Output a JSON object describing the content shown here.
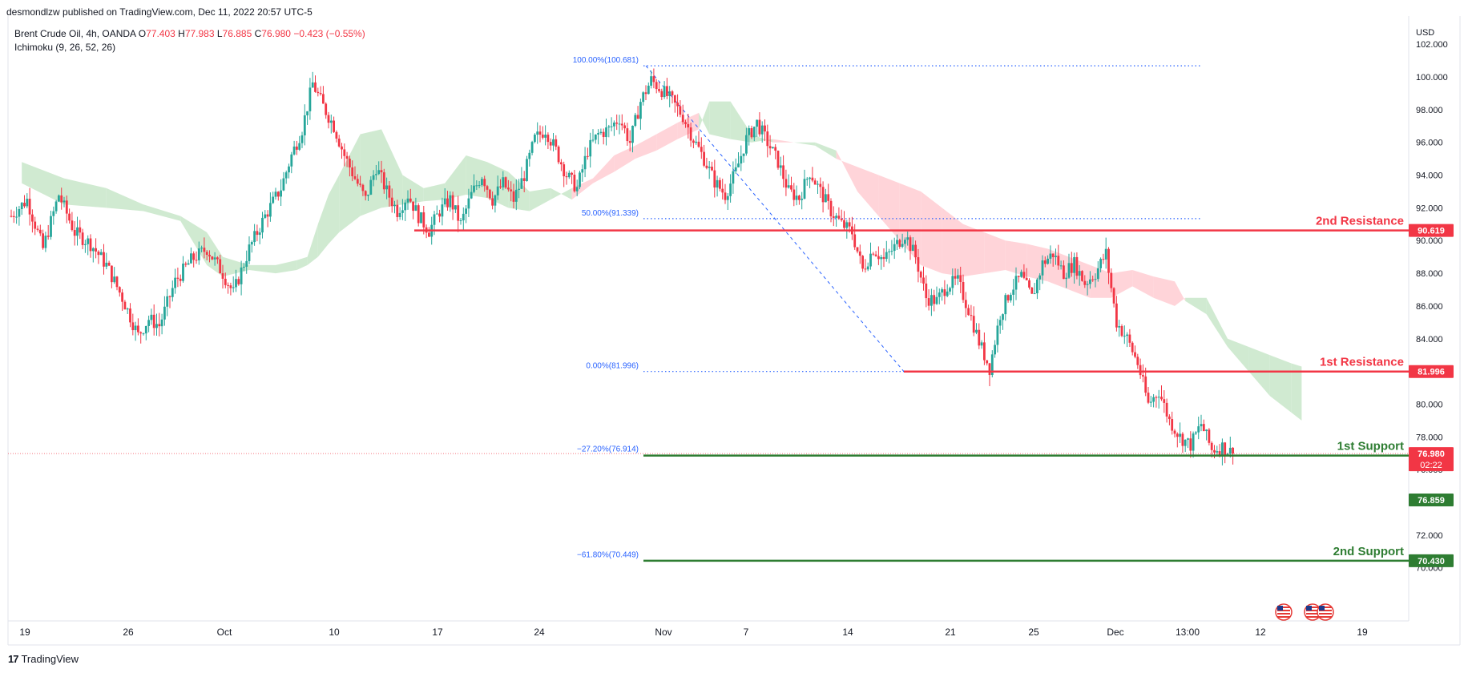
{
  "header": {
    "publisher": "desmondlzw published on TradingView.com, Dec 11, 2022 20:57 UTC-5"
  },
  "legend": {
    "symbol": "Brent Crude Oil, 4h, OANDA",
    "o_label": "O",
    "o_value": "77.403",
    "h_label": "H",
    "h_value": "77.983",
    "l_label": "L",
    "l_value": "76.885",
    "c_label": "C",
    "c_value": "76.980",
    "change": "−0.423 (−0.55%)",
    "indicator": "Ichimoku (9, 26, 52, 26)"
  },
  "footer": {
    "brand": "TradingView",
    "logo": "17"
  },
  "colors": {
    "up": "#26a69a",
    "down": "#f23645",
    "resistance": "#f23645",
    "support": "#2e7d32",
    "fib": "#2962ff",
    "cloud_bull": "#c8e6c9",
    "cloud_bear": "#ffcdd2"
  },
  "chart_data": {
    "type": "candlestick",
    "currency": "USD",
    "ylim": [
      69.2,
      102.6
    ],
    "y_ticks": [
      "70.000",
      "72.000",
      "74.000",
      "76.000",
      "78.000",
      "80.000",
      "82.000",
      "84.000",
      "86.000",
      "88.000",
      "90.000",
      "92.000",
      "94.000",
      "96.000",
      "98.000",
      "100.000",
      "102.000"
    ],
    "x_ticks": [
      "19",
      "26",
      "Oct",
      "10",
      "17",
      "24",
      "Nov",
      "7",
      "14",
      "21",
      "25",
      "Dec",
      "13:00",
      "12",
      "19"
    ],
    "price_tags": [
      {
        "value": "90.619",
        "price": 90.619,
        "color": "#f23645"
      },
      {
        "value": "81.996",
        "price": 81.996,
        "color": "#f23645"
      },
      {
        "value": "76.980",
        "price": 76.98,
        "color": "#f23645",
        "sub": "02:22"
      },
      {
        "value": "76.859",
        "price": 76.859,
        "color": "#2e7d32"
      },
      {
        "value": "70.430",
        "price": 70.43,
        "color": "#2e7d32"
      }
    ],
    "levels": [
      {
        "label": "2nd Resistance",
        "price": 90.619,
        "kind": "resistance"
      },
      {
        "label": "1st Resistance",
        "price": 81.996,
        "kind": "resistance"
      },
      {
        "label": "1st Support",
        "price": 76.859,
        "kind": "support"
      },
      {
        "label": "2nd Support",
        "price": 70.43,
        "kind": "support"
      }
    ],
    "fibonacci": [
      {
        "label": "100.00%(100.681)",
        "price": 100.681
      },
      {
        "label": "50.00%(91.339)",
        "price": 91.339
      },
      {
        "label": "0.00%(81.996)",
        "price": 81.996
      },
      {
        "label": "−27.20%(76.914)",
        "price": 76.914
      },
      {
        "label": "−61.80%(70.449)",
        "price": 70.449
      }
    ],
    "price_path": [
      [
        0,
        91.5
      ],
      [
        3,
        92.5
      ],
      [
        6,
        89.5
      ],
      [
        9,
        92.8
      ],
      [
        12,
        90.5
      ],
      [
        15,
        89.8
      ],
      [
        18,
        88.5
      ],
      [
        21,
        86.5
      ],
      [
        24,
        84.2
      ],
      [
        26,
        85.2
      ],
      [
        28,
        84.8
      ],
      [
        31,
        87.5
      ],
      [
        34,
        88.8
      ],
      [
        37,
        89.5
      ],
      [
        40,
        88.0
      ],
      [
        42,
        86.8
      ],
      [
        45,
        89.5
      ],
      [
        48,
        91.5
      ],
      [
        51,
        93.2
      ],
      [
        53,
        95.2
      ],
      [
        55,
        96.8
      ],
      [
        57,
        99.6
      ],
      [
        59,
        98.2
      ],
      [
        61,
        97.0
      ],
      [
        63,
        95.2
      ],
      [
        65,
        93.8
      ],
      [
        67,
        92.5
      ],
      [
        69,
        94.5
      ],
      [
        71,
        93.0
      ],
      [
        73,
        91.8
      ],
      [
        75,
        92.8
      ],
      [
        77,
        91.5
      ],
      [
        79,
        90.6
      ],
      [
        81,
        91.8
      ],
      [
        83,
        92.5
      ],
      [
        85,
        91.0
      ],
      [
        87,
        92.8
      ],
      [
        89,
        94.0
      ],
      [
        91,
        92.5
      ],
      [
        93,
        93.5
      ],
      [
        95,
        92.5
      ],
      [
        97,
        94.0
      ],
      [
        99,
        96.2
      ],
      [
        101,
        96.8
      ],
      [
        103,
        95.5
      ],
      [
        105,
        94.0
      ],
      [
        107,
        93.2
      ],
      [
        109,
        95.5
      ],
      [
        111,
        96.5
      ],
      [
        113,
        96.8
      ],
      [
        115,
        97.5
      ],
      [
        117,
        96.0
      ],
      [
        119,
        98.5
      ],
      [
        121,
        99.8
      ],
      [
        123,
        99.2
      ],
      [
        125,
        98.5
      ],
      [
        127,
        97.6
      ],
      [
        129,
        96.2
      ],
      [
        131,
        95.0
      ],
      [
        133,
        93.6
      ],
      [
        135,
        92.8
      ],
      [
        137,
        94.2
      ],
      [
        139,
        96.2
      ],
      [
        141,
        97.2
      ],
      [
        143,
        96.0
      ],
      [
        145,
        94.8
      ],
      [
        147,
        93.0
      ],
      [
        149,
        92.6
      ],
      [
        151,
        94.2
      ],
      [
        153,
        93.0
      ],
      [
        155,
        91.8
      ],
      [
        157,
        91.0
      ],
      [
        159,
        90.5
      ],
      [
        161,
        88.2
      ],
      [
        163,
        89.5
      ],
      [
        165,
        88.8
      ],
      [
        167,
        89.6
      ],
      [
        169,
        90.4
      ],
      [
        171,
        89.0
      ],
      [
        173,
        86.5
      ],
      [
        175,
        86.3
      ],
      [
        177,
        87.3
      ],
      [
        179,
        87.5
      ],
      [
        181,
        85.8
      ],
      [
        183,
        83.8
      ],
      [
        185,
        82.2
      ],
      [
        187,
        85.5
      ],
      [
        189,
        87.0
      ],
      [
        191,
        87.8
      ],
      [
        193,
        86.5
      ],
      [
        195,
        88.6
      ],
      [
        197,
        89.2
      ],
      [
        199,
        88.0
      ],
      [
        201,
        88.6
      ],
      [
        203,
        87.4
      ],
      [
        205,
        88.0
      ],
      [
        207,
        89.2
      ],
      [
        209,
        85.0
      ],
      [
        211,
        84.0
      ],
      [
        213,
        82.5
      ],
      [
        215,
        80.0
      ],
      [
        217,
        80.8
      ],
      [
        219,
        79.0
      ],
      [
        221,
        78.0
      ],
      [
        223,
        77.5
      ],
      [
        225,
        78.8
      ],
      [
        227,
        77.2
      ],
      [
        229,
        77.4
      ],
      [
        231,
        76.98
      ]
    ],
    "ichimoku_cloud": [
      [
        2,
        94.8,
        93.5
      ],
      [
        10,
        93.8,
        92.2
      ],
      [
        18,
        93.2,
        92.0
      ],
      [
        25,
        92.2,
        91.8
      ],
      [
        32,
        91.5,
        91.2
      ],
      [
        37,
        90.5,
        88.5
      ],
      [
        40,
        89.0,
        87.8
      ],
      [
        45,
        88.5,
        88.2
      ],
      [
        50,
        88.5,
        88.0
      ],
      [
        54,
        88.8,
        88.2
      ],
      [
        56,
        89.0,
        88.5
      ],
      [
        58,
        91.0,
        89.0
      ],
      [
        60,
        92.8,
        89.8
      ],
      [
        62,
        94.0,
        90.5
      ],
      [
        66,
        96.5,
        91.5
      ],
      [
        70,
        96.8,
        92.0
      ],
      [
        74,
        94.0,
        92.2
      ],
      [
        78,
        93.2,
        92.4
      ],
      [
        82,
        93.5,
        92.5
      ],
      [
        86,
        95.2,
        92.8
      ],
      [
        90,
        94.8,
        92.6
      ],
      [
        94,
        94.2,
        92.0
      ],
      [
        98,
        93.0,
        91.8
      ],
      [
        102,
        93.2,
        92.5
      ],
      [
        106,
        92.5,
        93.2
      ],
      [
        110,
        93.5,
        93.8
      ],
      [
        114,
        94.2,
        95.2
      ],
      [
        118,
        95.0,
        95.8
      ],
      [
        122,
        95.5,
        96.5
      ],
      [
        126,
        96.2,
        97.2
      ],
      [
        130,
        96.8,
        97.8
      ],
      [
        132,
        98.5,
        96.5
      ],
      [
        136,
        98.5,
        96.2
      ],
      [
        140,
        96.5,
        96.0
      ],
      [
        144,
        96.0,
        96.2
      ],
      [
        148,
        96.0,
        96.0
      ],
      [
        152,
        96.0,
        95.8
      ],
      [
        156,
        95.5,
        95.0
      ],
      [
        160,
        93.0,
        94.5
      ],
      [
        164,
        91.5,
        94.0
      ],
      [
        168,
        90.0,
        93.5
      ],
      [
        172,
        88.5,
        93.0
      ],
      [
        176,
        88.0,
        92.0
      ],
      [
        180,
        87.8,
        91.0
      ],
      [
        184,
        88.0,
        90.5
      ],
      [
        188,
        88.2,
        90.0
      ],
      [
        192,
        87.8,
        89.8
      ],
      [
        196,
        87.5,
        89.5
      ],
      [
        200,
        87.0,
        89.0
      ],
      [
        204,
        86.5,
        88.5
      ],
      [
        208,
        86.5,
        88.0
      ],
      [
        212,
        87.2,
        88.2
      ],
      [
        216,
        86.5,
        87.8
      ],
      [
        220,
        86.0,
        87.5
      ],
      [
        222,
        86.5,
        86.3
      ],
      [
        226,
        86.5,
        85.5
      ],
      [
        230,
        84.0,
        83.5
      ],
      [
        234,
        83.5,
        82.0
      ],
      [
        238,
        83.0,
        80.5
      ],
      [
        242,
        82.5,
        79.5
      ],
      [
        244,
        82.3,
        79.0
      ]
    ]
  }
}
